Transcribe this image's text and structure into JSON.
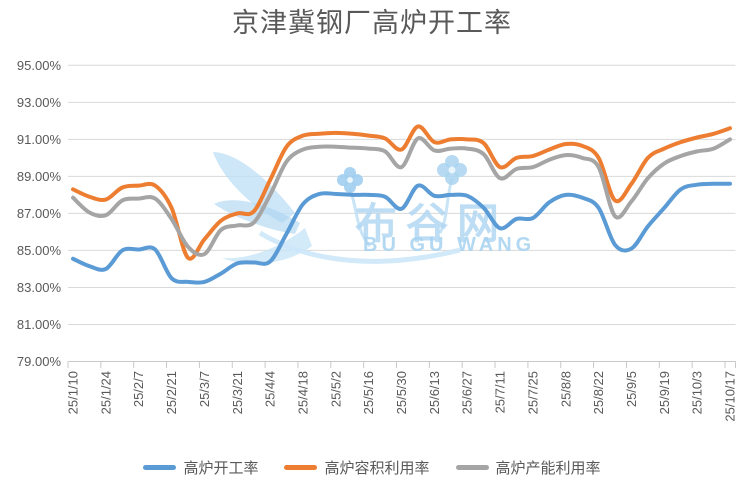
{
  "page": {
    "background": "#FFFFFF"
  },
  "chart_data": {
    "type": "line",
    "title": "京津冀钢厂高炉开工率",
    "x_labels": [
      "25/1/10",
      "25/1/24",
      "25/2/7",
      "25/2/21",
      "25/3/7",
      "25/3/21",
      "25/4/4",
      "25/4/18",
      "25/5/2",
      "25/5/16",
      "25/5/30",
      "25/6/13",
      "25/6/27",
      "25/7/11",
      "25/7/25",
      "25/8/8",
      "25/8/22",
      "25/9/5",
      "25/9/19",
      "25/10/3",
      "25/10/17"
    ],
    "points_per_label_interval": 2,
    "n_points": 41,
    "ylim": [
      79,
      95
    ],
    "y_tick_step": 2,
    "y_tick_labels": [
      "95.00%",
      "93.00%",
      "91.00%",
      "89.00%",
      "87.00%",
      "85.00%",
      "83.00%",
      "81.00%",
      "79.00%"
    ],
    "grid": true,
    "legend_position": "bottom",
    "smoothed": true,
    "axis_text_color": "#595959",
    "gridline_color": "#D9D9D9",
    "axis_line_color": "#C9C9C9",
    "series": [
      {
        "name": "高炉开工率",
        "color": "#5B9BD5",
        "values": [
          84.55,
          84.15,
          84.0,
          85.0,
          85.05,
          85.05,
          83.5,
          83.3,
          83.3,
          83.75,
          84.3,
          84.35,
          84.4,
          85.9,
          87.5,
          88.05,
          88.05,
          88.0,
          88.0,
          87.9,
          87.25,
          88.5,
          87.95,
          88.0,
          87.95,
          87.3,
          86.2,
          86.7,
          86.75,
          87.6,
          88.0,
          87.85,
          87.3,
          85.3,
          85.1,
          86.3,
          87.3,
          88.3,
          88.55,
          88.6,
          88.6
        ]
      },
      {
        "name": "高炉容积利用率",
        "color": "#ED7D31",
        "values": [
          88.3,
          87.9,
          87.75,
          88.4,
          88.5,
          88.5,
          87.3,
          84.6,
          85.6,
          86.6,
          87.0,
          87.1,
          88.8,
          90.6,
          91.2,
          91.3,
          91.35,
          91.3,
          91.2,
          91.05,
          90.45,
          91.7,
          90.85,
          91.0,
          91.0,
          90.8,
          89.5,
          90.0,
          90.1,
          90.45,
          90.75,
          90.65,
          90.0,
          87.7,
          88.6,
          90.0,
          90.5,
          90.85,
          91.1,
          91.3,
          91.6
        ]
      },
      {
        "name": "高炉产能利用率",
        "color": "#A5A5A5",
        "values": [
          87.85,
          87.05,
          86.9,
          87.7,
          87.8,
          87.8,
          86.7,
          85.2,
          84.8,
          86.1,
          86.35,
          86.5,
          88.0,
          89.8,
          90.45,
          90.6,
          90.6,
          90.55,
          90.5,
          90.35,
          89.5,
          91.05,
          90.4,
          90.5,
          90.5,
          90.2,
          88.9,
          89.4,
          89.5,
          89.9,
          90.15,
          90.0,
          89.5,
          86.85,
          87.65,
          88.9,
          89.7,
          90.1,
          90.35,
          90.5,
          91.0
        ]
      }
    ]
  },
  "watermark": {
    "text_cn": "布谷网",
    "text_en": "BU GU WANG",
    "color": "#BEDFF2"
  }
}
